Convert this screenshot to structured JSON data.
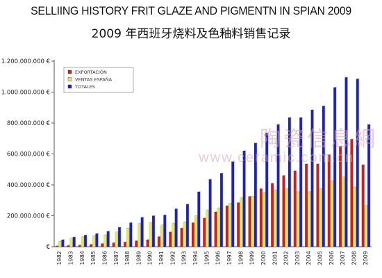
{
  "title": "SELLIING HISTORY FRIT GLAZE AND PIGMENTN IN SPIAN 2009",
  "subtitle": "2009 年西班牙烧料及色釉料销售记录",
  "watermark": "陶瓷信息網",
  "watermark_url": "www.ceramic.com.cn",
  "colors": {
    "exportacion": "#cc1f1f",
    "ventas": "#e8e85a",
    "totales": "#1f23b5"
  },
  "chart_data": {
    "type": "bar",
    "title": "SELLIING HISTORY FRIT GLAZE AND PIGMENTN IN SPIAN 2009",
    "subtitle": "2009 年西班牙烧料及色釉料销售记录",
    "xlabel": "",
    "ylabel": "",
    "ylim": [
      0,
      1200000000
    ],
    "y_ticks": [
      0,
      200000000,
      400000000,
      600000000,
      800000000,
      1000000000,
      1200000000
    ],
    "y_tick_labels": [
      "€",
      "200.000.000 €",
      "400.000.000 €",
      "600.000.000 €",
      "800.000.000 €",
      "1.000.000.000 €",
      "1.200.000.000 €"
    ],
    "categories": [
      "1982",
      "1983",
      "1984",
      "1985",
      "1986",
      "1987",
      "1988",
      "1989",
      "1990",
      "1991",
      "1992",
      "1993",
      "1994",
      "1995",
      "1996",
      "1997",
      "1998",
      "1999",
      "2000",
      "2001",
      "2002",
      "2003",
      "2004",
      "2005",
      "2006",
      "2007",
      "2008",
      "2009"
    ],
    "legend_position": "top-left",
    "grid": false,
    "series": [
      {
        "name": "EXPORTACIÓN",
        "color": "#cc1f1f",
        "values": [
          5000000,
          8000000,
          10000000,
          15000000,
          20000000,
          25000000,
          30000000,
          38000000,
          45000000,
          65000000,
          95000000,
          120000000,
          155000000,
          185000000,
          225000000,
          265000000,
          285000000,
          325000000,
          375000000,
          410000000,
          460000000,
          490000000,
          535000000,
          535000000,
          595000000,
          650000000,
          695000000,
          530000000
        ]
      },
      {
        "name": "VENTAS ESPAÑA",
        "color": "#e8e85a",
        "values": [
          35000000,
          55000000,
          65000000,
          70000000,
          75000000,
          95000000,
          120000000,
          150000000,
          155000000,
          140000000,
          150000000,
          160000000,
          200000000,
          235000000,
          250000000,
          280000000,
          315000000,
          325000000,
          350000000,
          365000000,
          375000000,
          355000000,
          355000000,
          375000000,
          425000000,
          450000000,
          385000000,
          265000000
        ]
      },
      {
        "name": "TOTALES",
        "color": "#1f23b5",
        "values": [
          45000000,
          62000000,
          75000000,
          85000000,
          100000000,
          125000000,
          155000000,
          190000000,
          200000000,
          205000000,
          245000000,
          275000000,
          355000000,
          435000000,
          475000000,
          550000000,
          620000000,
          670000000,
          735000000,
          790000000,
          835000000,
          835000000,
          885000000,
          910000000,
          1030000000,
          1095000000,
          1085000000,
          790000000
        ]
      }
    ]
  }
}
